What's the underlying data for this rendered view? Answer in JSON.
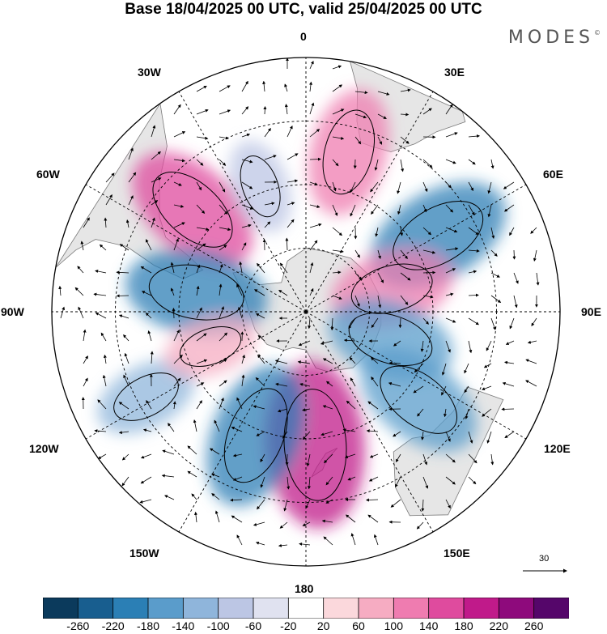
{
  "title": "Base 18/04/2025 00 UTC, valid 25/04/2025 00 UTC",
  "brand": "MODES",
  "brand_mark": "©",
  "longitude_labels": {
    "lon_0": "0",
    "lon_30e": "30E",
    "lon_60e": "60E",
    "lon_90e": "90E",
    "lon_120e": "120E",
    "lon_150e": "150E",
    "lon_180": "180",
    "lon_150w": "150W",
    "lon_120w": "120W",
    "lon_90w": "90W",
    "lon_60w": "60W",
    "lon_30w": "30W"
  },
  "vector_reference": "30",
  "colorbar": {
    "tick_labels": [
      "-260",
      "-220",
      "-180",
      "-140",
      "-100",
      "-60",
      "-20",
      "20",
      "60",
      "100",
      "140",
      "180",
      "220",
      "260"
    ],
    "colors": [
      "#0b3a5c",
      "#185e8f",
      "#2b7fb5",
      "#5a9ccb",
      "#8fb5db",
      "#bcc6e4",
      "#e0e2f0",
      "#ffffff",
      "#fbd8dc",
      "#f6acc2",
      "#ef7cb0",
      "#df4b9e",
      "#c01a8a",
      "#8e0a7c",
      "#55066a"
    ]
  },
  "anomalies": [
    {
      "name": "anomaly-pos-south-atlantic",
      "color": "#ef7cb0",
      "lon": 15,
      "lat": -38,
      "value": 150
    },
    {
      "name": "anomaly-neg-indian-ocean",
      "color": "#2b7fb5",
      "lon": 60,
      "lat": -42,
      "value": -190
    },
    {
      "name": "anomaly-pos-southern-indian",
      "color": "#ef7cb0",
      "lon": 75,
      "lat": -62,
      "value": 140
    },
    {
      "name": "anomaly-neg-east-antarctic",
      "color": "#5a9ccb",
      "lon": 108,
      "lat": -62,
      "value": -150
    },
    {
      "name": "anomaly-neg-south-australia",
      "color": "#5a9ccb",
      "lon": 128,
      "lat": -45,
      "value": -160
    },
    {
      "name": "anomaly-pos-tasman",
      "color": "#c01a8a",
      "lon": 176,
      "lat": -48,
      "value": 230
    },
    {
      "name": "anomaly-neg-southwest-pacific",
      "color": "#2b7fb5",
      "lon": -158,
      "lat": -48,
      "value": -190
    },
    {
      "name": "anomaly-pos-south-america",
      "color": "#df4b9e",
      "lon": -48,
      "lat": -42,
      "value": 180
    },
    {
      "name": "anomaly-neg-drake-passage",
      "color": "#2b7fb5",
      "lon": -80,
      "lat": -55,
      "value": -180
    },
    {
      "name": "anomaly-neg-south-pacific-far",
      "color": "#8fb5db",
      "lon": -118,
      "lat": -33,
      "value": -100
    },
    {
      "name": "anomaly-pos-southeast-pacific",
      "color": "#f6acc2",
      "lon": -110,
      "lat": -58,
      "value": 80
    },
    {
      "name": "anomaly-neg-south-atlantic-west",
      "color": "#bcc6e4",
      "lon": -20,
      "lat": -48,
      "value": -80
    }
  ]
}
